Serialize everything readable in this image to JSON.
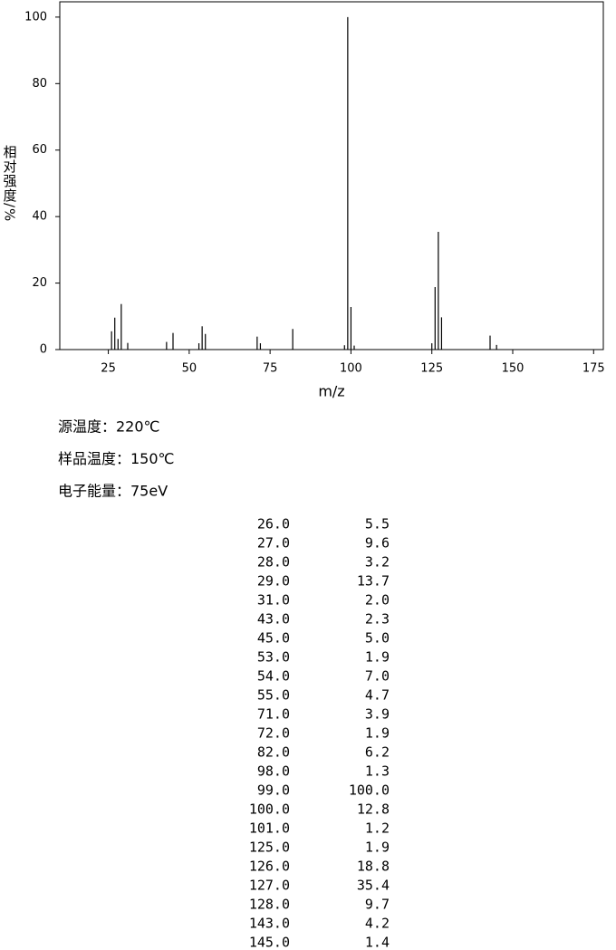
{
  "chart_data": {
    "type": "spectrum",
    "x_label": "m/z",
    "y_label": "相对强度/%",
    "x": [
      26,
      27,
      28,
      29,
      31,
      43,
      45,
      53,
      54,
      55,
      71,
      72,
      82,
      98,
      99,
      100,
      101,
      125,
      126,
      127,
      128,
      143,
      145
    ],
    "values": [
      5.5,
      9.6,
      3.2,
      13.7,
      2.0,
      2.3,
      5.0,
      1.9,
      7.0,
      4.7,
      3.9,
      1.9,
      6.2,
      1.3,
      100.0,
      12.8,
      1.2,
      1.9,
      18.8,
      35.4,
      9.7,
      4.2,
      1.4
    ],
    "color": "#000000",
    "xlim": [
      10,
      178
    ],
    "xticks": [
      25,
      50,
      75,
      100,
      125,
      150,
      175
    ],
    "ylim": [
      0,
      104.6
    ],
    "yticks": [
      0,
      20,
      40,
      60,
      80,
      100
    ]
  },
  "conditions": [
    "源温度：220℃",
    "样品温度：150℃",
    "电子能量：75eV"
  ],
  "table": {
    "rows": [
      [
        "26.0",
        "5.5"
      ],
      [
        "27.0",
        "9.6"
      ],
      [
        "28.0",
        "3.2"
      ],
      [
        "29.0",
        "13.7"
      ],
      [
        "31.0",
        "2.0"
      ],
      [
        "43.0",
        "2.3"
      ],
      [
        "45.0",
        "5.0"
      ],
      [
        "53.0",
        "1.9"
      ],
      [
        "54.0",
        "7.0"
      ],
      [
        "55.0",
        "4.7"
      ],
      [
        "71.0",
        "3.9"
      ],
      [
        "72.0",
        "1.9"
      ],
      [
        "82.0",
        "6.2"
      ],
      [
        "98.0",
        "1.3"
      ],
      [
        "99.0",
        "100.0"
      ],
      [
        "100.0",
        "12.8"
      ],
      [
        "101.0",
        "1.2"
      ],
      [
        "125.0",
        "1.9"
      ],
      [
        "126.0",
        "18.8"
      ],
      [
        "127.0",
        "35.4"
      ],
      [
        "128.0",
        "9.7"
      ],
      [
        "143.0",
        "4.2"
      ],
      [
        "145.0",
        "1.4"
      ]
    ]
  }
}
